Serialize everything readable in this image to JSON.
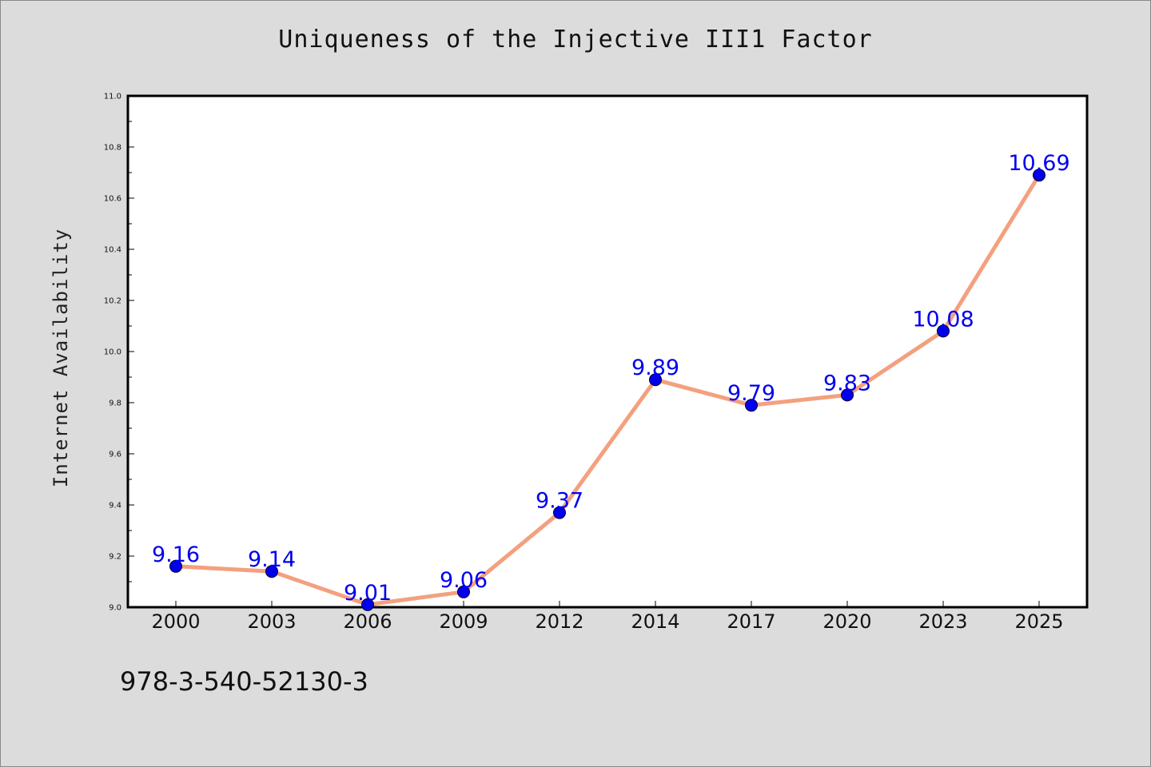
{
  "title": "Uniqueness of the Injective III1 Factor",
  "footer_text": "978-3-540-52130-3",
  "colors": {
    "background": "#dcdcdc",
    "plot_background": "#ffffff",
    "line": "#f4a07e",
    "marker": "#0000ee",
    "data_label": "#0000ee"
  },
  "chart_data": {
    "type": "line",
    "title": "Uniqueness of the Injective III1 Factor",
    "xlabel": "",
    "ylabel": "Internet Availability",
    "categories": [
      "2000",
      "2003",
      "2006",
      "2009",
      "2012",
      "2014",
      "2017",
      "2020",
      "2023",
      "2025"
    ],
    "series": [
      {
        "values": [
          9.16,
          9.14,
          9.01,
          9.06,
          9.37,
          9.89,
          9.79,
          9.83,
          10.08,
          10.69
        ]
      }
    ],
    "data_labels": [
      "9.16",
      "9.14",
      "9.01",
      "9.06",
      "9.37",
      "9.89",
      "9.79",
      "9.83",
      "10.08",
      "10.69"
    ],
    "ylim": [
      9.0,
      11.0
    ],
    "yticks": [
      "9.0",
      "9.2",
      "9.4",
      "9.6",
      "9.8",
      "10.0",
      "10.2",
      "10.4",
      "10.6",
      "10.8",
      "11.0"
    ],
    "grid": false,
    "legend": "none"
  }
}
